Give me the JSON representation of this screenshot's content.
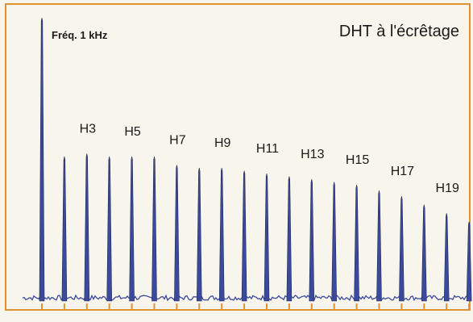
{
  "chart_data": {
    "type": "line",
    "title": "DHT à l'écrêtage",
    "annotation": "Fréq. 1 kHz",
    "xlabel": "",
    "ylabel": "",
    "grid": false,
    "legend": "none",
    "colors": {
      "background": "#f7f5ec",
      "frame": "#e0932f",
      "trace": "#3b4a9c",
      "text": "#1a1a1a"
    },
    "x_ticks": [
      1,
      2,
      3,
      4,
      5,
      6,
      7,
      8,
      9,
      10,
      11,
      12,
      13,
      14,
      15,
      16,
      17,
      18,
      19,
      20
    ],
    "series": [
      {
        "x": [
          1,
          2,
          3,
          4,
          5,
          6,
          7,
          8,
          9,
          10,
          11,
          12,
          13,
          14,
          15,
          16,
          17,
          18,
          19,
          20
        ],
        "values": [
          100,
          51,
          52,
          51,
          51,
          51,
          48,
          47,
          47,
          46,
          45,
          44,
          43,
          42,
          41,
          39,
          37,
          34,
          31,
          28
        ]
      }
    ],
    "labels": [
      "H3",
      "H5",
      "H7",
      "H9",
      "H11",
      "H13",
      "H15",
      "H17",
      "H19"
    ],
    "label_harmonics": [
      3,
      5,
      7,
      9,
      11,
      13,
      15,
      17,
      19
    ]
  }
}
